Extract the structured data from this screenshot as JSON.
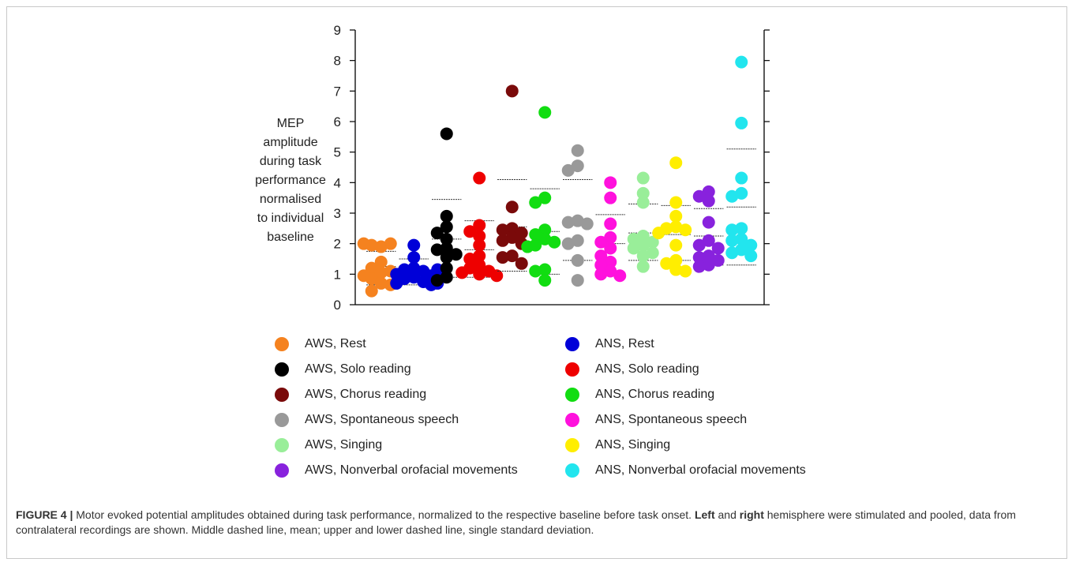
{
  "chart_data": {
    "type": "scatter",
    "ylabel": "MEP\namplitude\nduring task\nperformance\nnormalised\nto individual\nbaseline",
    "ylim": [
      0,
      9
    ],
    "yticks": [
      0,
      1,
      2,
      3,
      4,
      5,
      6,
      7,
      8,
      9
    ],
    "grid": false,
    "legend_position": "bottom",
    "series": [
      {
        "name": "AWS, Rest",
        "color": "#f5821f",
        "values": [
          1.9,
          1.95,
          2.0,
          2.0,
          1.4,
          1.2,
          1.05,
          1.1,
          0.95,
          0.85,
          0.7,
          0.65,
          0.45,
          1.0
        ],
        "mean": 1.25,
        "sd_upper": 1.75,
        "sd_lower": 0.65
      },
      {
        "name": "ANS, Rest",
        "color": "#0000d8",
        "values": [
          1.95,
          1.55,
          1.2,
          1.15,
          1.1,
          1.0,
          0.95,
          0.9,
          0.85,
          0.75,
          0.7,
          0.65,
          0.7,
          0.95,
          1.15
        ],
        "mean": 1.05,
        "sd_upper": 1.5,
        "sd_lower": 0.65
      },
      {
        "name": "AWS, Solo reading",
        "color": "#000000",
        "values": [
          5.6,
          2.9,
          2.55,
          2.35,
          2.15,
          1.85,
          1.8,
          1.65,
          1.55,
          1.2,
          0.9,
          0.8
        ],
        "mean": 2.15,
        "sd_upper": 3.45,
        "sd_lower": 0.9
      },
      {
        "name": "ANS, Solo reading",
        "color": "#ee0000",
        "values": [
          4.15,
          2.6,
          2.4,
          2.25,
          1.95,
          1.6,
          1.5,
          1.3,
          1.2,
          1.1,
          1.05,
          1.0,
          0.95
        ],
        "mean": 1.8,
        "sd_upper": 2.75,
        "sd_lower": 0.9
      },
      {
        "name": "AWS, Chorus reading",
        "color": "#7a0a0a",
        "values": [
          7.0,
          3.2,
          2.5,
          2.45,
          2.35,
          2.2,
          2.1,
          2.0,
          1.6,
          1.55,
          1.35
        ],
        "mean": 2.55,
        "sd_upper": 4.1,
        "sd_lower": 1.1
      },
      {
        "name": "ANS, Chorus reading",
        "color": "#11dd11",
        "values": [
          6.3,
          3.5,
          3.35,
          2.45,
          2.3,
          2.15,
          2.05,
          1.95,
          1.9,
          1.15,
          1.1,
          0.8
        ],
        "mean": 2.4,
        "sd_upper": 3.8,
        "sd_lower": 1.0
      },
      {
        "name": "AWS, Spontaneous speech",
        "color": "#999999",
        "values": [
          5.05,
          4.55,
          4.4,
          2.75,
          2.7,
          2.65,
          2.1,
          2.0,
          1.45,
          0.8
        ],
        "mean": 2.75,
        "sd_upper": 4.1,
        "sd_lower": 1.45
      },
      {
        "name": "ANS, Spontaneous speech",
        "color": "#ff11dd",
        "values": [
          4.0,
          3.5,
          2.65,
          2.2,
          2.05,
          1.85,
          1.6,
          1.4,
          1.3,
          1.1,
          1.0,
          0.95
        ],
        "mean": 2.0,
        "sd_upper": 2.95,
        "sd_lower": 1.05
      },
      {
        "name": "AWS, Singing",
        "color": "#99ee99",
        "values": [
          4.15,
          3.65,
          3.35,
          2.25,
          2.15,
          2.05,
          1.95,
          1.85,
          1.7,
          1.6,
          1.25
        ],
        "mean": 2.35,
        "sd_upper": 3.3,
        "sd_lower": 1.45
      },
      {
        "name": "ANS, Singing",
        "color": "#ffee00",
        "values": [
          4.65,
          3.35,
          2.9,
          2.55,
          2.5,
          2.45,
          2.35,
          1.95,
          1.45,
          1.35,
          1.15,
          1.1
        ],
        "mean": 2.3,
        "sd_upper": 3.25,
        "sd_lower": 1.45
      },
      {
        "name": "AWS, Nonverbal orofacial movements",
        "color": "#8822dd",
        "values": [
          3.7,
          3.55,
          3.4,
          2.7,
          2.1,
          1.95,
          1.85,
          1.6,
          1.55,
          1.45,
          1.3,
          1.25
        ],
        "mean": 2.25,
        "sd_upper": 3.15,
        "sd_lower": 1.3
      },
      {
        "name": "ANS, Nonverbal orofacial movements",
        "color": "#22e5ee",
        "values": [
          7.95,
          5.95,
          4.15,
          3.65,
          3.55,
          2.5,
          2.45,
          2.15,
          2.1,
          1.95,
          1.8,
          1.7,
          1.6
        ],
        "mean": 3.2,
        "sd_upper": 5.1,
        "sd_lower": 1.3
      }
    ]
  },
  "legend": [
    {
      "label": "AWS, Rest",
      "color": "#f5821f"
    },
    {
      "label": "AWS, Solo reading",
      "color": "#000000"
    },
    {
      "label": "AWS, Chorus reading",
      "color": "#7a0a0a"
    },
    {
      "label": "AWS, Spontaneous speech",
      "color": "#999999"
    },
    {
      "label": "AWS, Singing",
      "color": "#99ee99"
    },
    {
      "label": "AWS, Nonverbal orofacial movements",
      "color": "#8822dd"
    },
    {
      "label": "ANS, Rest",
      "color": "#0000d8"
    },
    {
      "label": "ANS, Solo reading",
      "color": "#ee0000"
    },
    {
      "label": "ANS, Chorus reading",
      "color": "#11dd11"
    },
    {
      "label": "ANS, Spontaneous speech",
      "color": "#ff11dd"
    },
    {
      "label": "ANS, Singing",
      "color": "#ffee00"
    },
    {
      "label": "ANS, Nonverbal orofacial movements",
      "color": "#22e5ee"
    }
  ],
  "caption": {
    "figure_label": "FIGURE 4 |",
    "part1": " Motor evoked potential amplitudes obtained during task performance, normalized to the respective baseline before task onset. ",
    "left": "Left",
    "part2": " and ",
    "right": "right",
    "part3": " hemisphere were stimulated and pooled, data from contralateral recordings are shown. Middle dashed line, mean; upper and lower dashed line, single standard deviation."
  }
}
